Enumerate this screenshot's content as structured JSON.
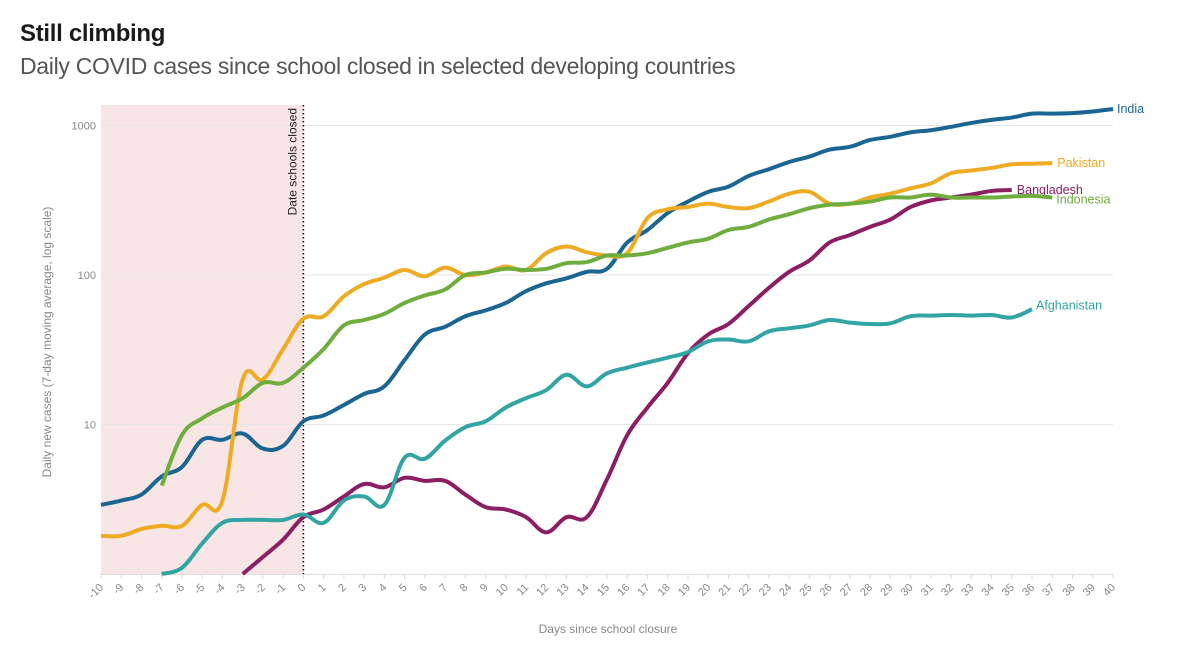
{
  "chart_data": {
    "type": "line",
    "title": "Still climbing",
    "subtitle": "Daily COVID cases since school closed in selected developing countries",
    "xlabel": "Days since school closure",
    "ylabel": "Daily new cases (7-day moving average, log scale)",
    "yscale": "log",
    "ylim": [
      1,
      1400
    ],
    "xlim": [
      -10,
      40
    ],
    "yticks": [
      10,
      100,
      1000
    ],
    "ytick_labels": [
      "10",
      "100",
      "1000"
    ],
    "xticks": [
      -10,
      -9,
      -8,
      -7,
      -6,
      -5,
      -4,
      -3,
      -2,
      -1,
      0,
      1,
      2,
      3,
      4,
      5,
      6,
      7,
      8,
      9,
      10,
      11,
      12,
      13,
      14,
      15,
      16,
      17,
      18,
      19,
      20,
      21,
      22,
      23,
      24,
      25,
      26,
      27,
      28,
      29,
      30,
      31,
      32,
      33,
      34,
      35,
      36,
      37,
      38,
      39,
      40
    ],
    "grid": "horizontal",
    "legend": "inline labels at line ends",
    "shaded_region": {
      "x_from": -10,
      "x_to": 0,
      "color": "#f8e6e6"
    },
    "annotation": {
      "x": 0,
      "label": "Date schools closed"
    },
    "series": [
      {
        "name": "India",
        "color": "#1b6592",
        "x": [
          -10,
          -9,
          -8,
          -7,
          -6,
          -5,
          -4,
          -3,
          -2,
          -1,
          0,
          1,
          2,
          3,
          4,
          5,
          6,
          7,
          8,
          9,
          10,
          11,
          12,
          13,
          14,
          15,
          16,
          17,
          18,
          19,
          20,
          21,
          22,
          23,
          24,
          25,
          26,
          27,
          28,
          29,
          30,
          31,
          32,
          33,
          34,
          35,
          36,
          37,
          38,
          39,
          40
        ],
        "values": [
          2.9,
          3.1,
          3.4,
          4.5,
          5.2,
          7.9,
          7.9,
          8.7,
          6.9,
          7.2,
          10.5,
          11.5,
          13.5,
          16,
          18,
          27,
          40,
          45,
          53,
          58,
          65,
          78,
          88,
          95,
          105,
          110,
          165,
          200,
          260,
          310,
          360,
          390,
          460,
          510,
          570,
          620,
          690,
          720,
          800,
          840,
          900,
          930,
          980,
          1040,
          1090,
          1130,
          1200,
          1200,
          1210,
          1240,
          1290
        ]
      },
      {
        "name": "Pakistan",
        "color": "#eeab24",
        "x": [
          -10,
          -9,
          -8,
          -7,
          -6,
          -5,
          -4,
          -3,
          -2,
          -1,
          0,
          1,
          2,
          3,
          4,
          5,
          6,
          7,
          8,
          9,
          10,
          11,
          12,
          13,
          14,
          15,
          16,
          17,
          18,
          19,
          20,
          21,
          22,
          23,
          24,
          25,
          26,
          27,
          28,
          29,
          30,
          31,
          32,
          33,
          34,
          35,
          36,
          37
        ],
        "values": [
          1.8,
          1.8,
          2.0,
          2.1,
          2.1,
          2.9,
          3.1,
          20,
          20,
          32,
          51,
          53,
          72,
          87,
          96,
          108,
          98,
          112,
          100,
          104,
          114,
          108,
          140,
          155,
          142,
          135,
          140,
          240,
          275,
          285,
          300,
          285,
          280,
          310,
          350,
          360,
          300,
          300,
          330,
          350,
          380,
          410,
          480,
          500,
          520,
          550,
          555,
          560
        ]
      },
      {
        "name": "Bangladesh",
        "color": "#8c1e63",
        "x": [
          -3,
          -2,
          -1,
          0,
          1,
          2,
          3,
          4,
          5,
          6,
          7,
          8,
          9,
          10,
          11,
          12,
          13,
          14,
          15,
          16,
          17,
          18,
          19,
          20,
          21,
          22,
          23,
          24,
          25,
          26,
          27,
          28,
          29,
          30,
          31,
          32,
          33,
          34,
          35
        ],
        "values": [
          1,
          1.3,
          1.7,
          2.4,
          2.7,
          3.3,
          4.0,
          3.8,
          4.4,
          4.2,
          4.2,
          3.4,
          2.8,
          2.7,
          2.4,
          1.9,
          2.4,
          2.4,
          4.3,
          8.5,
          13,
          19,
          30,
          40,
          47,
          62,
          82,
          105,
          125,
          165,
          185,
          210,
          235,
          285,
          315,
          330,
          345,
          365,
          370
        ]
      },
      {
        "name": "Indonesia",
        "color": "#70ad3f",
        "x": [
          -7,
          -6,
          -5,
          -4,
          -3,
          -2,
          -1,
          0,
          1,
          2,
          3,
          4,
          5,
          6,
          7,
          8,
          9,
          10,
          11,
          12,
          13,
          14,
          15,
          16,
          17,
          18,
          19,
          20,
          21,
          22,
          23,
          24,
          25,
          26,
          27,
          28,
          29,
          30,
          31,
          32,
          33,
          34,
          35,
          36,
          37
        ],
        "values": [
          3.9,
          8.5,
          11,
          13,
          15,
          19,
          19,
          24,
          32,
          46,
          50,
          55,
          65,
          73,
          80,
          100,
          104,
          110,
          108,
          110,
          120,
          122,
          135,
          135,
          140,
          152,
          165,
          175,
          200,
          210,
          235,
          255,
          280,
          295,
          300,
          310,
          330,
          330,
          345,
          330,
          330,
          330,
          335,
          338,
          330
        ]
      },
      {
        "name": "Afghanistan",
        "color": "#33a4a4",
        "x": [
          -7,
          -6,
          -5,
          -4,
          -3,
          -2,
          -1,
          0,
          1,
          2,
          3,
          4,
          5,
          6,
          7,
          8,
          9,
          10,
          11,
          12,
          13,
          14,
          15,
          16,
          17,
          18,
          19,
          20,
          21,
          22,
          23,
          24,
          25,
          26,
          27,
          28,
          29,
          30,
          31,
          32,
          33,
          34,
          35,
          36
        ],
        "values": [
          1,
          1.1,
          1.6,
          2.2,
          2.3,
          2.3,
          2.3,
          2.5,
          2.2,
          3.1,
          3.3,
          2.9,
          6.0,
          5.9,
          7.8,
          9.6,
          10.5,
          13,
          15,
          17,
          21.5,
          18,
          22,
          24,
          26,
          28,
          30.5,
          36,
          37,
          36,
          42,
          44,
          46,
          50,
          48,
          47,
          47.5,
          53,
          53.5,
          54,
          53.5,
          54,
          52,
          59
        ]
      }
    ]
  }
}
